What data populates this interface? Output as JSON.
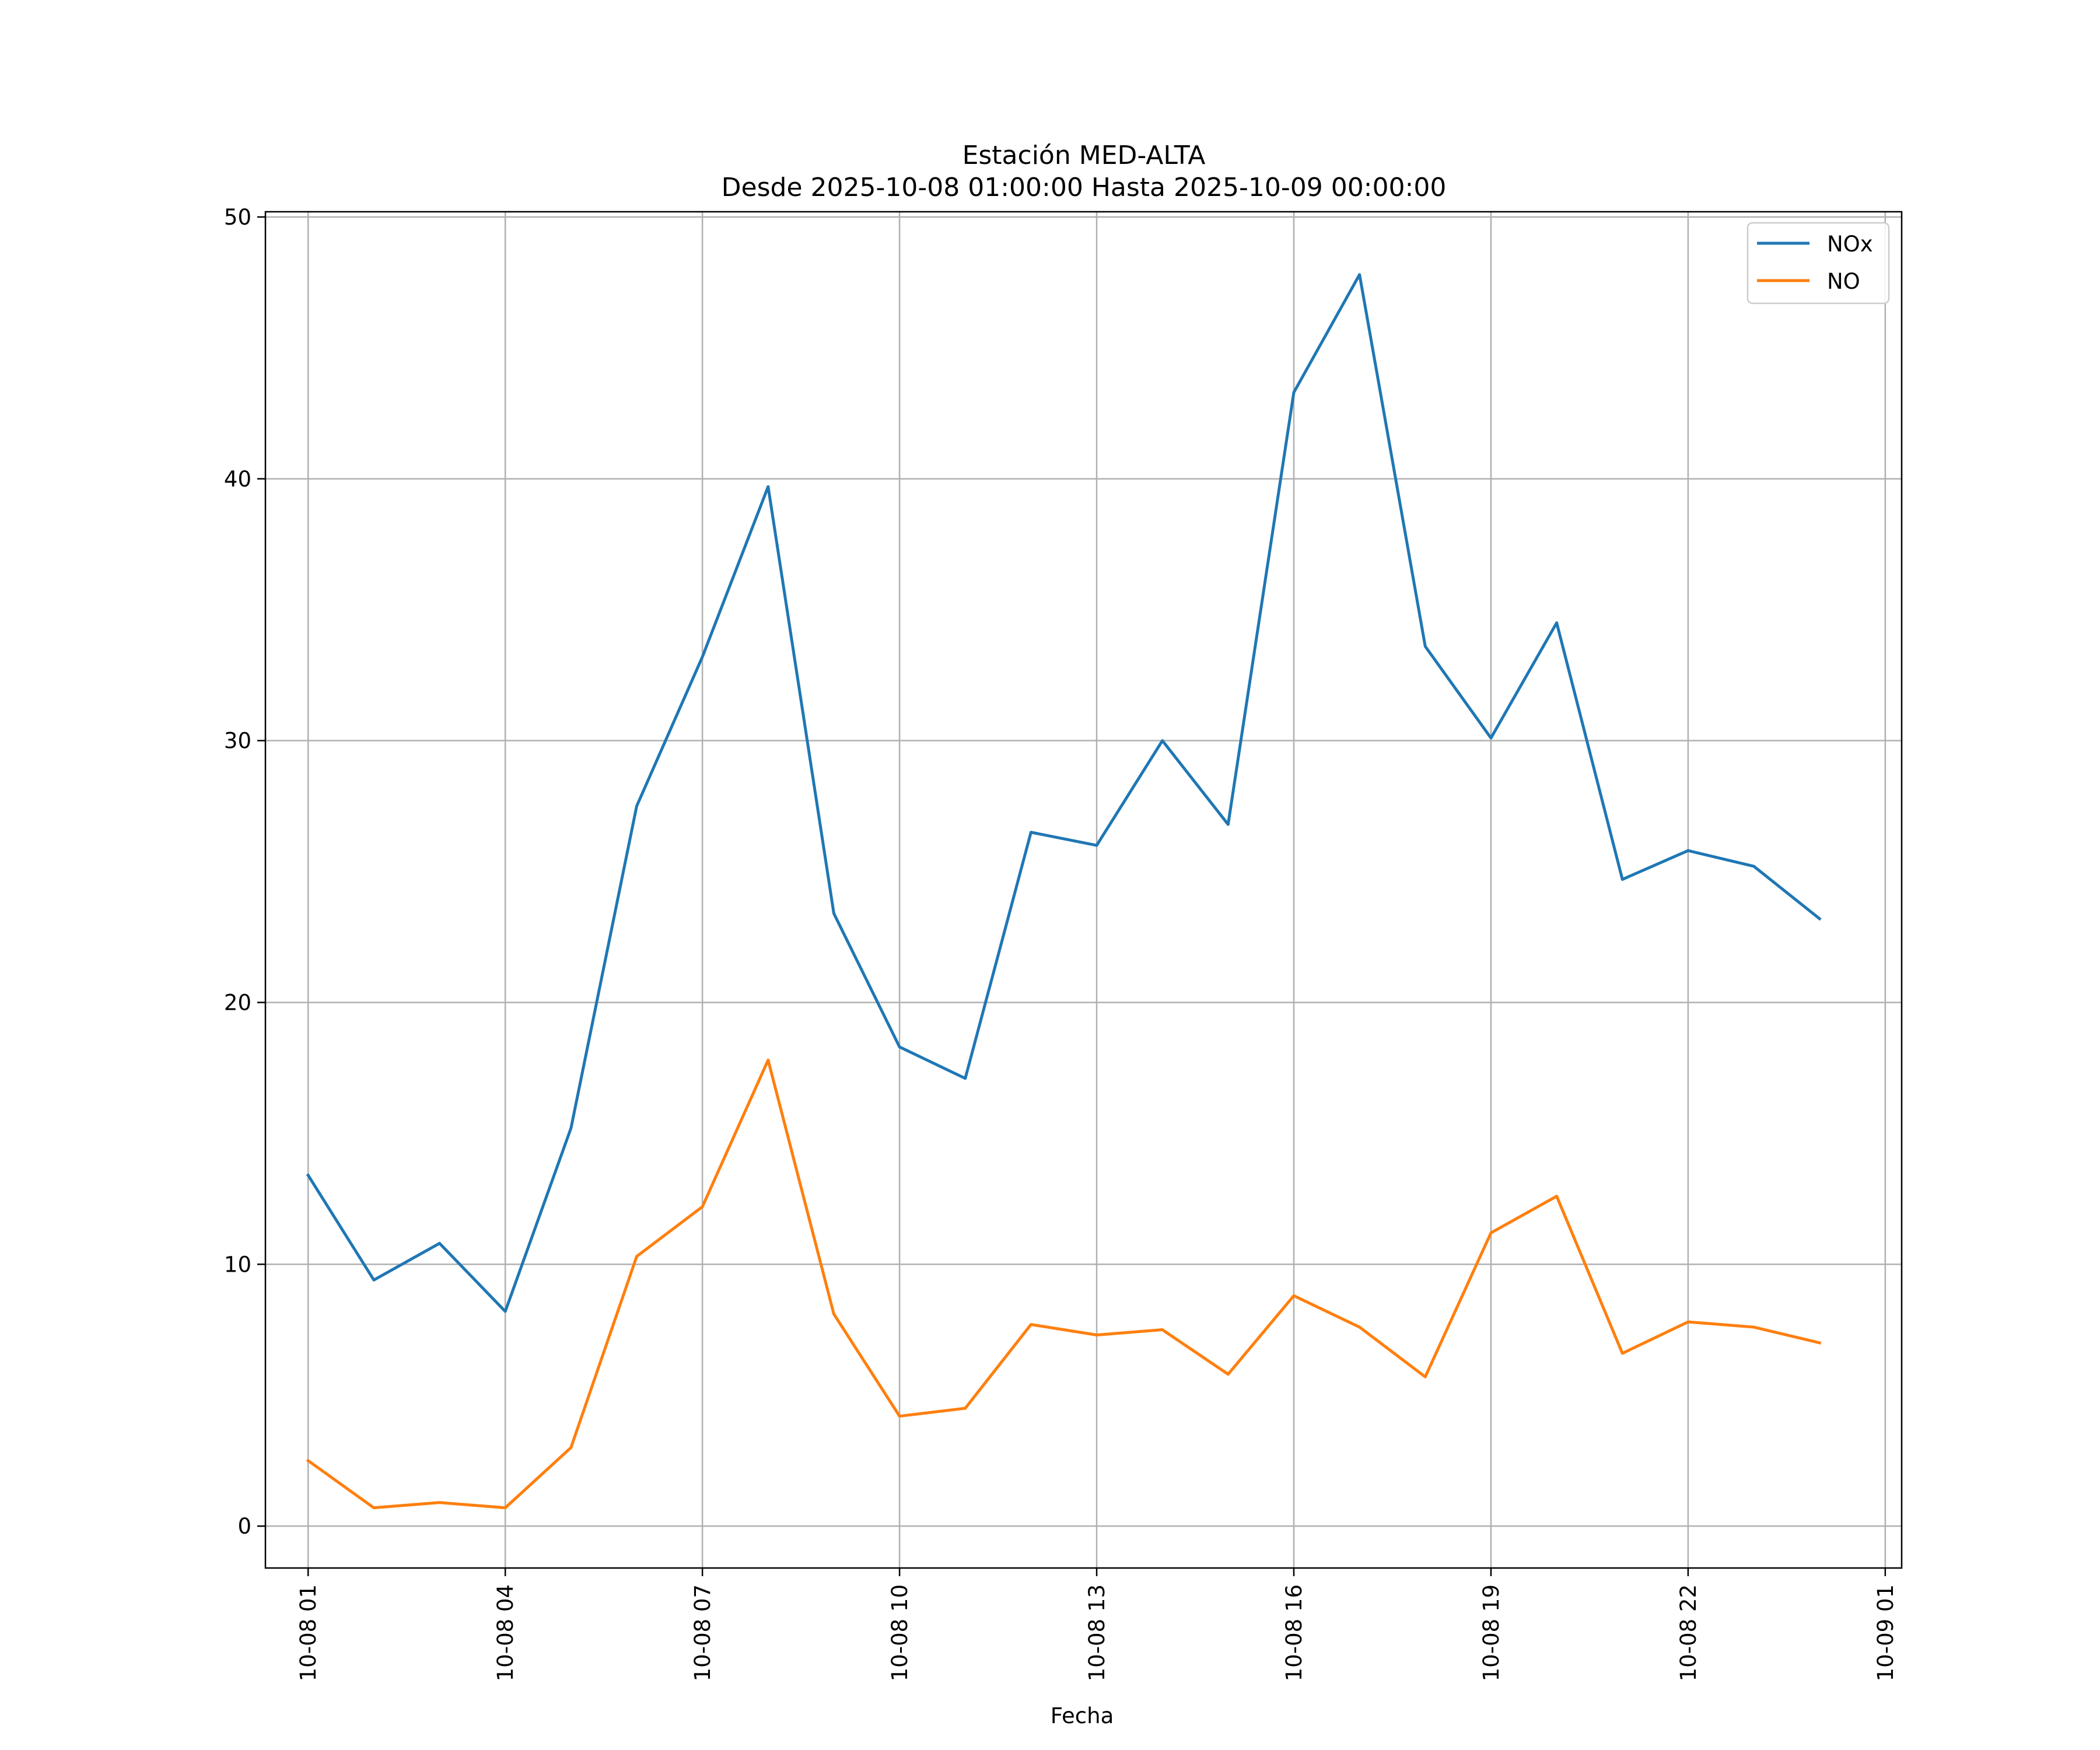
{
  "chart_data": {
    "type": "line",
    "title": "Estación MED-ALTA",
    "subtitle": "Desde 2025-10-08 01:00:00 Hasta 2025-10-09 00:00:00",
    "xlabel": "Fecha",
    "ylabel": "",
    "x": [
      "10-08 01",
      "10-08 02",
      "10-08 03",
      "10-08 04",
      "10-08 05",
      "10-08 06",
      "10-08 07",
      "10-08 08",
      "10-08 09",
      "10-08 10",
      "10-08 11",
      "10-08 12",
      "10-08 13",
      "10-08 14",
      "10-08 15",
      "10-08 16",
      "10-08 17",
      "10-08 18",
      "10-08 19",
      "10-08 20",
      "10-08 21",
      "10-08 22",
      "10-08 23",
      "10-09 00"
    ],
    "xticks": [
      "10-08 01",
      "10-08 04",
      "10-08 07",
      "10-08 10",
      "10-08 13",
      "10-08 16",
      "10-08 19",
      "10-08 22",
      "10-09 01"
    ],
    "xlim_hours": [
      -0.65,
      24.25
    ],
    "yticks": [
      0,
      10,
      20,
      30,
      40,
      50
    ],
    "ylim": [
      -1.6,
      50.2
    ],
    "grid": true,
    "legend_position": "top-right",
    "series": [
      {
        "name": "NOx",
        "color": "#1f77b4",
        "values": [
          13.4,
          9.4,
          10.8,
          8.2,
          15.2,
          27.5,
          33.2,
          39.7,
          23.4,
          18.3,
          17.1,
          26.5,
          26.0,
          30.0,
          26.8,
          43.3,
          47.8,
          33.6,
          30.1,
          34.5,
          24.7,
          25.8,
          25.2,
          23.2
        ]
      },
      {
        "name": "NO",
        "color": "#ff7f0e",
        "values": [
          2.5,
          0.7,
          0.9,
          0.7,
          3.0,
          10.3,
          12.2,
          17.8,
          8.1,
          4.2,
          4.5,
          7.7,
          7.3,
          7.5,
          5.8,
          8.8,
          7.6,
          5.7,
          11.2,
          12.6,
          6.6,
          7.8,
          7.6,
          7.0
        ]
      }
    ]
  }
}
